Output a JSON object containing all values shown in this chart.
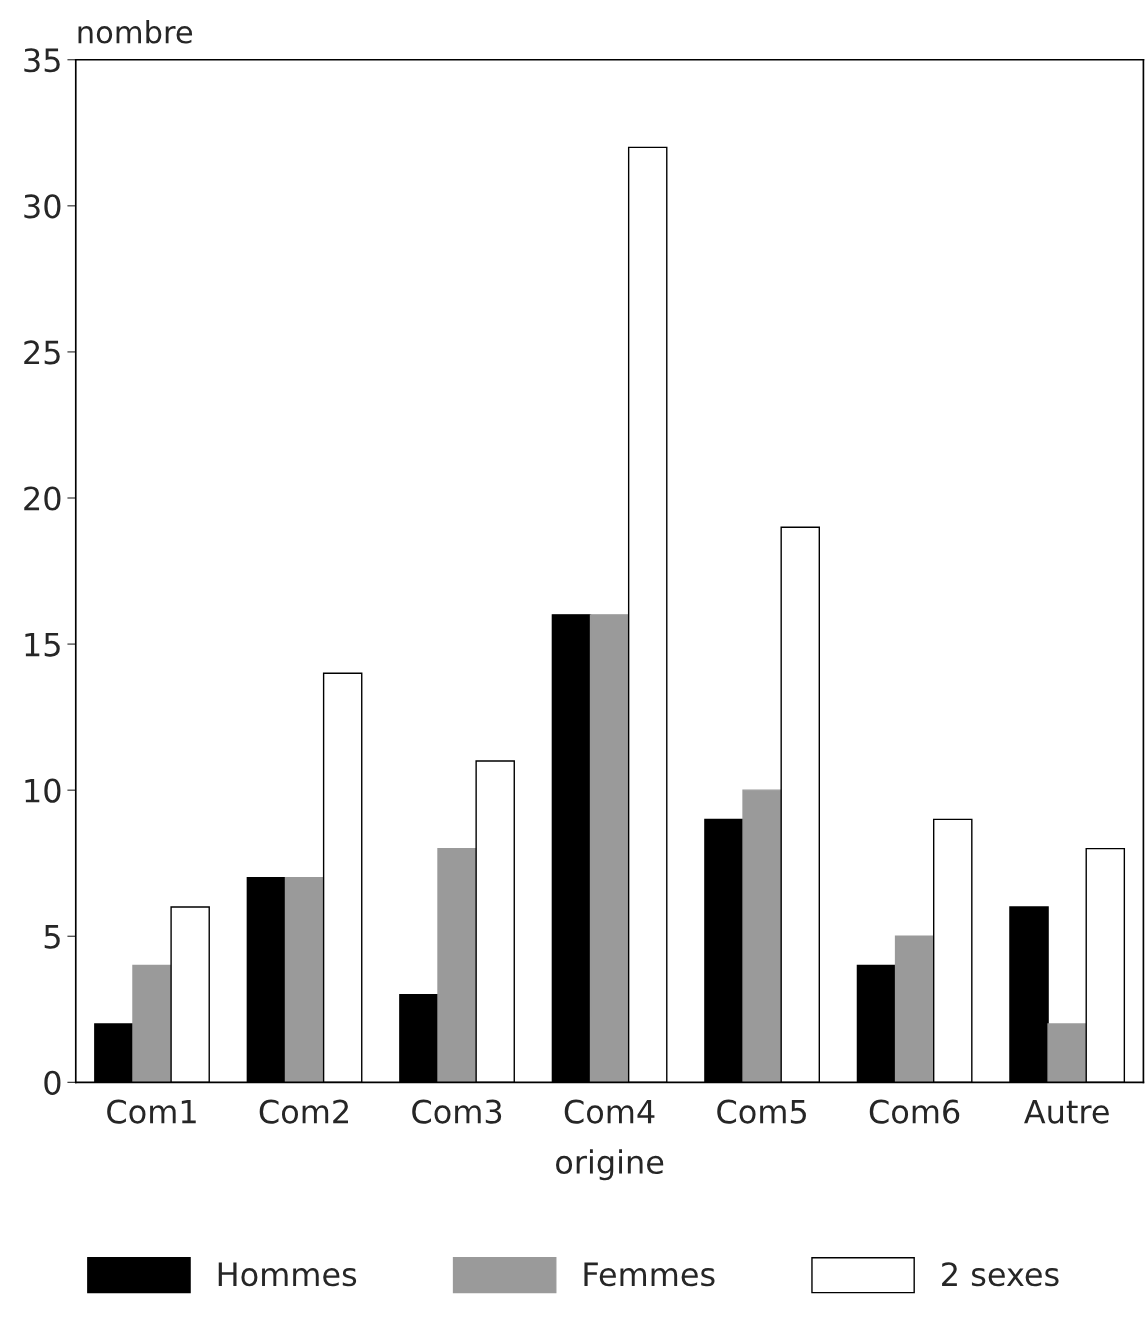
{
  "chart_data": {
    "type": "bar",
    "ylabel": "nombre",
    "xlabel": "origine",
    "categories": [
      "Com1",
      "Com2",
      "Com3",
      "Com4",
      "Com5",
      "Com6",
      "Autre"
    ],
    "series": [
      {
        "name": "Hommes",
        "color": "#000000",
        "values": [
          2,
          7,
          3,
          16,
          9,
          4,
          6
        ]
      },
      {
        "name": "Femmes",
        "color": "#9a9a9a",
        "values": [
          4,
          7,
          8,
          16,
          10,
          5,
          2
        ]
      },
      {
        "name": "2 sexes",
        "color": "#ffffff",
        "values": [
          6,
          14,
          11,
          32,
          19,
          9,
          8
        ]
      }
    ],
    "ylim": [
      0,
      35
    ],
    "yticks": [
      0,
      5,
      10,
      15,
      20,
      25,
      30,
      35
    ],
    "grid": false,
    "legend": "bottom"
  }
}
